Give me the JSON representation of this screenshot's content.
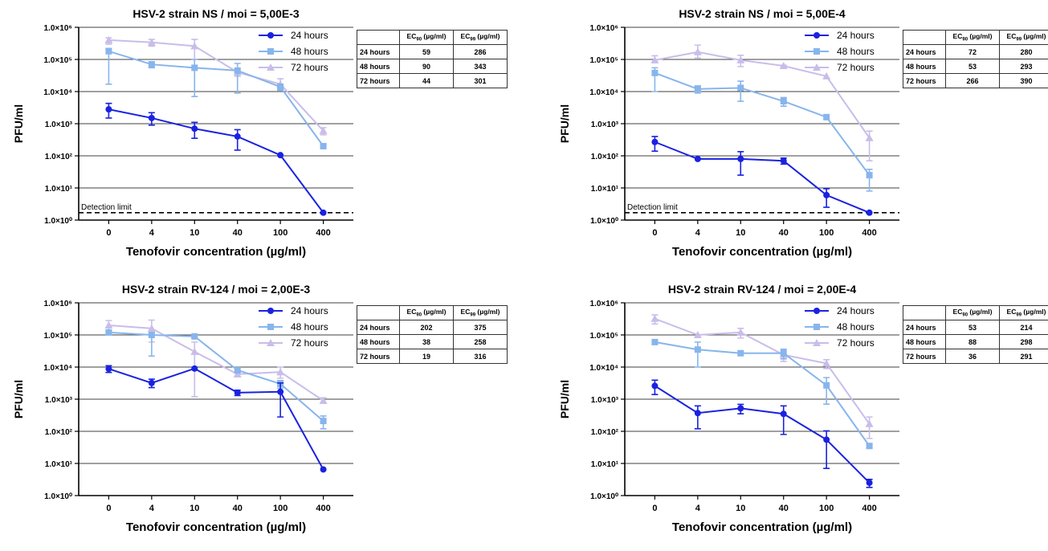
{
  "labels": {
    "ylabel": "PFU/ml",
    "xlabel": "Tenofovir concentration (µg/ml)",
    "detection_limit": "Detection limit",
    "ec_prefix": "EC",
    "ec90_sub": "90",
    "ec99_sub": "99",
    "ec_unit": " (µg/ml)"
  },
  "colors": {
    "24 hours": "#1a22e0",
    "48 hours": "#87b5ec",
    "72 hours": "#c9bde9",
    "gridline": "#000000",
    "detection_line": "#000000"
  },
  "chart_data": [
    {
      "type": "line",
      "title": "HSV-2 strain NS  / moi = 5,00E-3",
      "xlabel": "Tenofovir concentration (µg/ml)",
      "ylabel": "PFU/ml",
      "categories": [
        "0",
        "4",
        "10",
        "40",
        "100",
        "400"
      ],
      "y_scale": "log",
      "ylim": [
        1,
        1000000
      ],
      "y_ticks": [
        "1.0×10⁰",
        "1.0×10¹",
        "1.0×10²",
        "1.0×10³",
        "1.0×10⁴",
        "1.0×10⁵",
        "1.0×10⁶"
      ],
      "grid": "horizontal",
      "legend_position": "top-right",
      "detection_limit": 1.7,
      "series": [
        {
          "name": "24 hours",
          "marker": "circle",
          "values": [
            2800,
            1500,
            700,
            400,
            105,
            1.7
          ],
          "err_low": [
            1500,
            900,
            350,
            150,
            105,
            1.7
          ],
          "err_high": [
            4300,
            2200,
            1100,
            650,
            105,
            1.7
          ]
        },
        {
          "name": "48 hours",
          "marker": "square",
          "values": [
            180000,
            70000,
            55000,
            45000,
            14000,
            200
          ],
          "err_low": [
            17000,
            55000,
            7000,
            9000,
            11000,
            180
          ],
          "err_high": [
            220000,
            85000,
            100000,
            75000,
            17000,
            220
          ]
        },
        {
          "name": "72 hours",
          "marker": "triangle",
          "values": [
            400000,
            340000,
            260000,
            40000,
            17000,
            600
          ],
          "err_low": [
            300000,
            260000,
            100000,
            30000,
            11000,
            450
          ],
          "err_high": [
            470000,
            420000,
            420000,
            50000,
            25000,
            750
          ]
        }
      ],
      "ec_table": {
        "rows": [
          {
            "label": "24 hours",
            "ec90": "59",
            "ec99": "286"
          },
          {
            "label": "48 hours",
            "ec90": "90",
            "ec99": "343"
          },
          {
            "label": "72 hours",
            "ec90": "44",
            "ec99": "301"
          }
        ]
      }
    },
    {
      "type": "line",
      "title": "HSV-2 strain NS / moi = 5,00E-4",
      "xlabel": "Tenofovir concentration (µg/ml)",
      "ylabel": "PFU/ml",
      "categories": [
        "0",
        "4",
        "10",
        "40",
        "100",
        "400"
      ],
      "y_scale": "log",
      "ylim": [
        1,
        1000000
      ],
      "y_ticks": [
        "1.0×10⁰",
        "1.0×10¹",
        "1.0×10²",
        "1.0×10³",
        "1.0×10⁴",
        "1.0×10⁵",
        "1.0×10⁶"
      ],
      "grid": "horizontal",
      "legend_position": "top-right",
      "detection_limit": 1.7,
      "series": [
        {
          "name": "24 hours",
          "marker": "circle",
          "values": [
            270,
            80,
            80,
            70,
            6,
            1.7
          ],
          "err_low": [
            140,
            80,
            25,
            55,
            2.5,
            1.7
          ],
          "err_high": [
            400,
            80,
            135,
            85,
            9.5,
            1.7
          ]
        },
        {
          "name": "48 hours",
          "marker": "square",
          "values": [
            38000,
            12000,
            13000,
            5000,
            1600,
            25
          ],
          "err_low": [
            10000,
            9000,
            5000,
            3500,
            1600,
            8
          ],
          "err_high": [
            55000,
            15000,
            21000,
            6500,
            1600,
            38
          ]
        },
        {
          "name": "72 hours",
          "marker": "triangle",
          "values": [
            95000,
            170000,
            95000,
            63000,
            30000,
            360
          ],
          "err_low": [
            80000,
            110000,
            60000,
            60000,
            30000,
            70
          ],
          "err_high": [
            130000,
            280000,
            135000,
            66000,
            30000,
            590
          ]
        }
      ],
      "ec_table": {
        "rows": [
          {
            "label": "24 hours",
            "ec90": "72",
            "ec99": "280"
          },
          {
            "label": "48 hours",
            "ec90": "53",
            "ec99": "293"
          },
          {
            "label": "72 hours",
            "ec90": "266",
            "ec99": "390"
          }
        ]
      }
    },
    {
      "type": "line",
      "title": "HSV-2 strain RV-124 / moi = 2,00E-3",
      "xlabel": "Tenofovir concentration (µg/ml)",
      "ylabel": "PFU/ml",
      "categories": [
        "0",
        "4",
        "10",
        "40",
        "100",
        "400"
      ],
      "y_scale": "log",
      "ylim": [
        1,
        1000000
      ],
      "y_ticks": [
        "1.0×10⁰",
        "1.0×10¹",
        "1.0×10²",
        "1.0×10³",
        "1.0×10⁴",
        "1.0×10⁵",
        "1.0×10⁶"
      ],
      "grid": "horizontal",
      "legend_position": "top-right",
      "detection_limit": null,
      "series": [
        {
          "name": "24 hours",
          "marker": "circle",
          "values": [
            8800,
            3200,
            9000,
            1600,
            1700,
            6.5
          ],
          "err_low": [
            6800,
            2300,
            9000,
            1300,
            280,
            6.5
          ],
          "err_high": [
            11000,
            4200,
            9000,
            1900,
            3200,
            6.5
          ]
        },
        {
          "name": "48 hours",
          "marker": "square",
          "values": [
            120000,
            100000,
            90000,
            8000,
            3000,
            210
          ],
          "err_low": [
            100000,
            22000,
            80000,
            6500,
            2200,
            120
          ],
          "err_high": [
            140000,
            120000,
            100000,
            9500,
            3800,
            300
          ]
        },
        {
          "name": "72 hours",
          "marker": "triangle",
          "values": [
            200000,
            160000,
            30000,
            6000,
            7000,
            900
          ],
          "err_low": [
            130000,
            60000,
            1200,
            5000,
            4500,
            750
          ],
          "err_high": [
            280000,
            290000,
            60000,
            7000,
            10000,
            1100
          ]
        }
      ],
      "ec_table": {
        "rows": [
          {
            "label": "24 hours",
            "ec90": "202",
            "ec99": "375"
          },
          {
            "label": "48 hours",
            "ec90": "38",
            "ec99": "258"
          },
          {
            "label": "72 hours",
            "ec90": "19",
            "ec99": "316"
          }
        ]
      }
    },
    {
      "type": "line",
      "title": "HSV-2 strain RV-124 / moi = 2,00E-4",
      "xlabel": "Tenofovir concentration (µg/ml)",
      "ylabel": "PFU/ml",
      "categories": [
        "0",
        "4",
        "10",
        "40",
        "100",
        "400"
      ],
      "y_scale": "log",
      "ylim": [
        1,
        1000000
      ],
      "y_ticks": [
        "1.0×10⁰",
        "1.0×10¹",
        "1.0×10²",
        "1.0×10³",
        "1.0×10⁴",
        "1.0×10⁵",
        "1.0×10⁶"
      ],
      "grid": "horizontal",
      "legend_position": "top-right",
      "detection_limit": null,
      "series": [
        {
          "name": "24 hours",
          "marker": "circle",
          "values": [
            2600,
            370,
            520,
            350,
            55,
            2.5
          ],
          "err_low": [
            1400,
            120,
            350,
            80,
            7,
            1.8
          ],
          "err_high": [
            3900,
            620,
            690,
            620,
            103,
            3.2
          ]
        },
        {
          "name": "48 hours",
          "marker": "square",
          "values": [
            60000,
            35000,
            27000,
            27000,
            2700,
            35
          ],
          "err_low": [
            60000,
            10000,
            27000,
            18000,
            700,
            30
          ],
          "err_high": [
            60000,
            60000,
            27000,
            36000,
            4700,
            40
          ]
        },
        {
          "name": "72 hours",
          "marker": "triangle",
          "values": [
            320000,
            100000,
            120000,
            24000,
            13000,
            170
          ],
          "err_low": [
            220000,
            100000,
            80000,
            15000,
            9000,
            60
          ],
          "err_high": [
            420000,
            100000,
            160000,
            33000,
            17000,
            280
          ]
        }
      ],
      "ec_table": {
        "rows": [
          {
            "label": "24 hours",
            "ec90": "53",
            "ec99": "214"
          },
          {
            "label": "48 hours",
            "ec90": "88",
            "ec99": "298"
          },
          {
            "label": "72 hours",
            "ec90": "36",
            "ec99": "291"
          }
        ]
      }
    }
  ]
}
